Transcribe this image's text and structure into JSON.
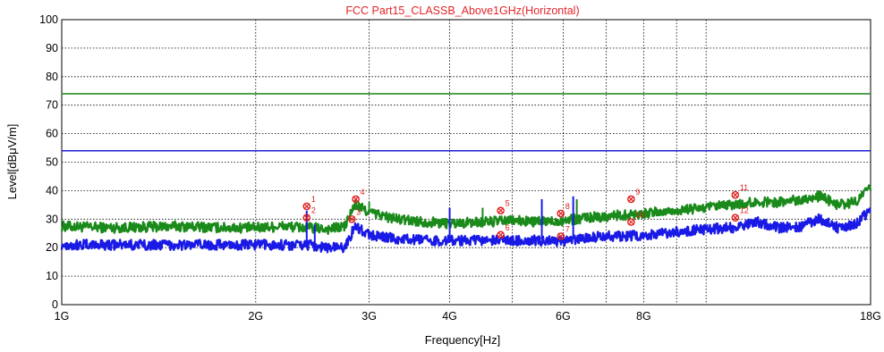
{
  "chart_data": {
    "type": "line",
    "title": "FCC Part15_CLASSB_Above1GHz(Horizontal)",
    "xlabel": "Frequency[Hz]",
    "ylabel": "Level[dBμV/m]",
    "x_scale": "log",
    "x_unit": "GHz",
    "xlim": [
      1,
      18
    ],
    "ylim": [
      0,
      100
    ],
    "grid": true,
    "x_ticks": [
      {
        "value": 1,
        "label": "1G"
      },
      {
        "value": 2,
        "label": "2G"
      },
      {
        "value": 3,
        "label": "3G"
      },
      {
        "value": 4,
        "label": "4G"
      },
      {
        "value": 6,
        "label": "6G"
      },
      {
        "value": 8,
        "label": "8G"
      },
      {
        "value": 18,
        "label": "18G"
      }
    ],
    "x_gridlines": [
      2,
      3,
      4,
      5,
      6,
      7,
      8,
      9,
      10,
      18
    ],
    "y_ticks": [
      0,
      10,
      20,
      30,
      40,
      50,
      60,
      70,
      80,
      90,
      100
    ],
    "limit_lines": [
      {
        "value": 74,
        "color": "#2e8b2e"
      },
      {
        "value": 54,
        "color": "#1f1fd6"
      }
    ],
    "series": [
      {
        "color": "#1a8a1a",
        "x": [
          1.0,
          1.2,
          1.5,
          1.8,
          2.0,
          2.2,
          2.4,
          2.6,
          2.75,
          2.85,
          3.0,
          3.3,
          3.7,
          4.0,
          4.5,
          5.0,
          5.5,
          6.0,
          6.5,
          7.0,
          7.5,
          8.0,
          9.0,
          10.0,
          11.0,
          12.0,
          13.0,
          14.0,
          15.0,
          16.0,
          17.0,
          18.0
        ],
        "y": [
          27.5,
          27,
          27.5,
          27,
          27,
          27.5,
          27,
          26.5,
          27.5,
          35,
          32.5,
          30,
          29,
          28.5,
          29,
          29.5,
          29,
          29.5,
          30.5,
          31,
          31.5,
          32,
          33,
          34,
          35,
          36,
          36,
          37,
          38,
          35,
          36,
          41
        ]
      },
      {
        "color": "#1a1ae6",
        "x": [
          1.0,
          1.2,
          1.5,
          1.8,
          2.0,
          2.2,
          2.4,
          2.6,
          2.75,
          2.85,
          3.0,
          3.3,
          3.7,
          4.0,
          4.5,
          5.0,
          5.5,
          6.0,
          6.5,
          7.0,
          7.5,
          8.0,
          9.0,
          10.0,
          11.0,
          12.0,
          13.0,
          14.0,
          15.0,
          16.0,
          17.0,
          18.0
        ],
        "y": [
          21,
          21,
          21,
          21,
          21,
          21,
          21,
          20,
          20,
          27.5,
          24.5,
          23,
          22.5,
          22.5,
          22.5,
          22.5,
          22.5,
          22,
          23.5,
          24,
          24,
          24.5,
          25.5,
          26.5,
          27,
          29,
          27,
          27.5,
          30,
          27,
          28,
          33
        ]
      }
    ],
    "spikes": [
      {
        "x": 2.4,
        "top": 33,
        "color": "#1a1ae6",
        "base": 22
      },
      {
        "x": 2.47,
        "top": 28,
        "color": "#1a1ae6",
        "base": 21
      },
      {
        "x": 3.0,
        "top": 36,
        "color": "#1a8a1a",
        "base": 32
      },
      {
        "x": 4.0,
        "top": 34,
        "color": "#1a1ae6",
        "base": 23
      },
      {
        "x": 4.5,
        "top": 34,
        "color": "#1a8a1a",
        "base": 29
      },
      {
        "x": 5.56,
        "top": 37,
        "color": "#1a1ae6",
        "base": 23
      },
      {
        "x": 6.22,
        "top": 38,
        "color": "#1a1ae6",
        "base": 23
      },
      {
        "x": 6.3,
        "top": 37,
        "color": "#1a8a1a",
        "base": 30
      }
    ],
    "markers": [
      {
        "label": "1",
        "x": 2.4,
        "y": 34.5
      },
      {
        "label": "2",
        "x": 2.4,
        "y": 30.5
      },
      {
        "label": "3",
        "x": 2.82,
        "y": 30
      },
      {
        "label": "4",
        "x": 2.86,
        "y": 37
      },
      {
        "label": "5",
        "x": 4.8,
        "y": 33
      },
      {
        "label": "6",
        "x": 4.8,
        "y": 24.5
      },
      {
        "label": "7",
        "x": 5.95,
        "y": 24
      },
      {
        "label": "8",
        "x": 5.95,
        "y": 32
      },
      {
        "label": "9",
        "x": 7.65,
        "y": 37
      },
      {
        "label": "10",
        "x": 7.65,
        "y": 29
      },
      {
        "label": "11",
        "x": 11.1,
        "y": 38.5
      },
      {
        "label": "12",
        "x": 11.1,
        "y": 30.5
      }
    ],
    "marker_color": "#e0201e"
  }
}
